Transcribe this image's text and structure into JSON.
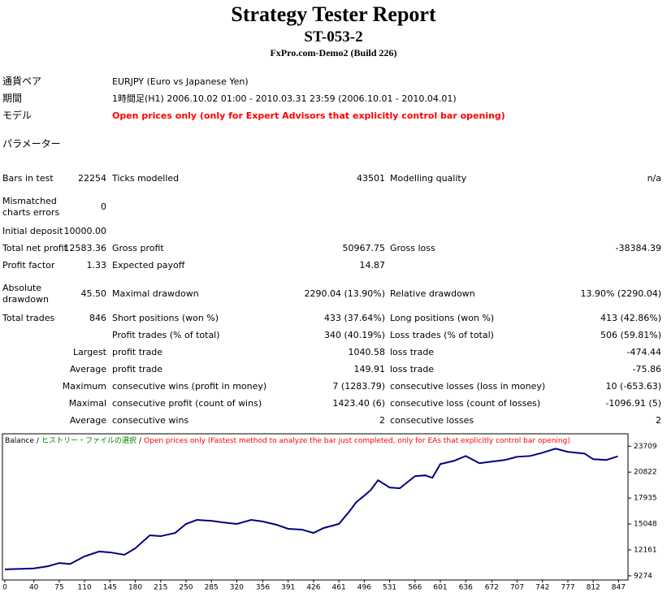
{
  "header": {
    "title": "Strategy Tester Report",
    "subtitle": "ST-053-2",
    "server": "FxPro.com-Demo2 (Build 226)"
  },
  "info": [
    {
      "label": "通貨ペア",
      "value": "EURJPY (Euro vs Japanese Yen)"
    },
    {
      "label": "期間",
      "value": "1時間足(H1) 2006.10.02 01:00 - 2010.03.31 23:59 (2006.10.01 - 2010.04.01)"
    },
    {
      "label": "モデル",
      "value": "Open prices only (only for Expert Advisors that explicitly control bar opening)"
    }
  ],
  "parameters_label": "パラメーター",
  "table": {
    "rows": [
      [
        "Bars in test",
        "22254",
        "Ticks modelled",
        "43501",
        "Modelling quality",
        "n/a"
      ],
      [
        "Mismatched charts errors",
        "0",
        null,
        null,
        null,
        null
      ],
      [
        "Initial deposit",
        "10000.00",
        null,
        null,
        null,
        null
      ],
      [
        "Total net profit",
        "12583.36",
        "Gross profit",
        "50967.75",
        "Gross loss",
        "-38384.39"
      ],
      [
        "Profit factor",
        "1.33",
        "Expected payoff",
        "14.87",
        null,
        null
      ],
      [
        "Absolute drawdown",
        "45.50",
        "Maximal drawdown",
        "2290.04 (13.90%)",
        "Relative drawdown",
        "13.90% (2290.04)"
      ],
      [
        "Total trades",
        "846",
        "Short positions (won %)",
        "433 (37.64%)",
        "Long positions (won %)",
        "413 (42.86%)"
      ],
      [
        null,
        null,
        "Profit trades (% of total)",
        "340 (40.19%)",
        "Loss trades (% of total)",
        "506 (59.81%)"
      ],
      [
        null,
        "Largest",
        "profit trade",
        "1040.58",
        "loss trade",
        "-474.44"
      ],
      [
        null,
        "Average",
        "profit trade",
        "149.91",
        "loss trade",
        "-75.86"
      ],
      [
        null,
        "Maximum",
        "consecutive wins (profit in money)",
        "7 (1283.79)",
        "consecutive losses (loss in money)",
        "10 (-653.63)"
      ],
      [
        null,
        "Maximal",
        "consecutive profit (count of wins)",
        "1423.40 (6)",
        "consecutive loss (count of losses)",
        "-1096.91 (5)"
      ],
      [
        null,
        "Average",
        "consecutive wins",
        "2",
        "consecutive losses",
        "2"
      ]
    ]
  },
  "chart_data": {
    "type": "line",
    "separator": "/",
    "notes": [
      {
        "text": "ヒストリー・ファイルの選択",
        "color": "#008000"
      },
      {
        "text": "Open prices only (Fastest method to analyze the bar just completed, only for EAs that explicitly control bar opening)",
        "color": "#ff0000"
      }
    ],
    "x": [
      0,
      40,
      60,
      75,
      90,
      110,
      130,
      145,
      165,
      180,
      200,
      215,
      235,
      250,
      265,
      285,
      300,
      320,
      340,
      356,
      375,
      391,
      410,
      426,
      440,
      461,
      475,
      485,
      496,
      505,
      515,
      531,
      545,
      566,
      580,
      590,
      601,
      620,
      636,
      655,
      672,
      690,
      707,
      725,
      742,
      760,
      777,
      800,
      812,
      830,
      846
    ],
    "series": [
      {
        "name": "Balance",
        "color": "#000080",
        "values": [
          10000,
          10100,
          10350,
          10700,
          10600,
          11440,
          11980,
          11890,
          11620,
          12340,
          13780,
          13690,
          14050,
          15050,
          15500,
          15400,
          15230,
          15050,
          15500,
          15320,
          14960,
          14510,
          14420,
          14050,
          14600,
          15050,
          16400,
          17480,
          18200,
          18830,
          19920,
          19110,
          19020,
          20370,
          20460,
          20190,
          21720,
          22080,
          22620,
          21810,
          21990,
          22170,
          22530,
          22620,
          22980,
          23440,
          23080,
          22890,
          22260,
          22170,
          22583
        ]
      }
    ],
    "xlim": [
      0,
      860
    ],
    "ylim": [
      8900,
      25000
    ],
    "xticks": [
      0,
      40,
      75,
      110,
      145,
      180,
      215,
      250,
      285,
      320,
      356,
      391,
      426,
      461,
      496,
      531,
      566,
      601,
      636,
      672,
      707,
      742,
      777,
      812,
      847
    ],
    "yticks": [
      9274,
      12161,
      15048,
      17935,
      20822,
      23709
    ]
  }
}
